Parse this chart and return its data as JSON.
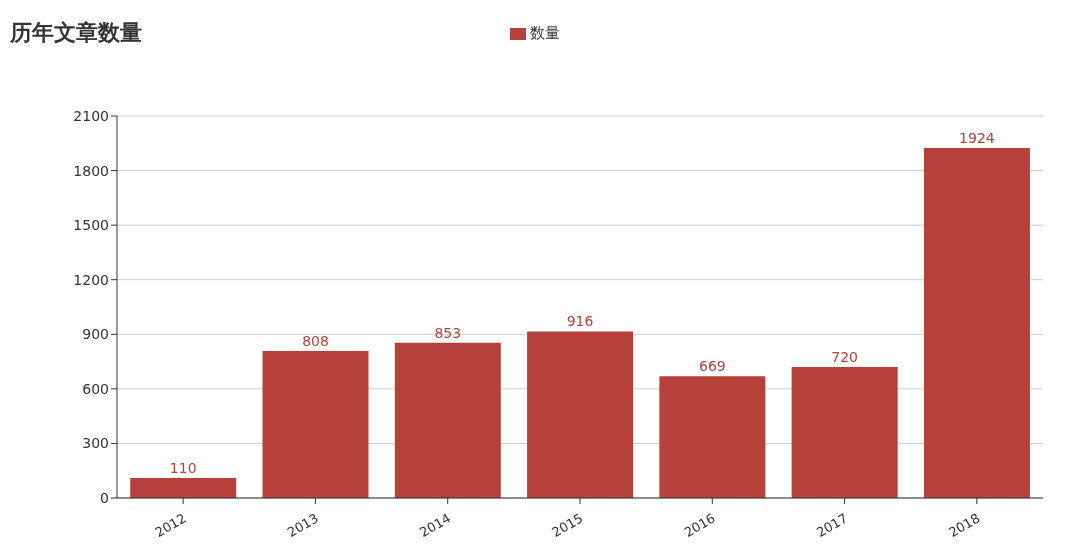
{
  "chart_data": {
    "type": "bar",
    "title": "历年文章数量",
    "categories": [
      "2012",
      "2013",
      "2014",
      "2015",
      "2016",
      "2017",
      "2018"
    ],
    "series": [
      {
        "name": "数量",
        "color": "#b5413a",
        "values": [
          110,
          808,
          853,
          916,
          669,
          720,
          1924
        ]
      }
    ],
    "ylim": [
      0,
      2100
    ],
    "yticks": [
      0,
      300,
      600,
      900,
      1200,
      1500,
      1800,
      2100
    ],
    "grid": "y",
    "legend": "top",
    "data_labels": true
  }
}
